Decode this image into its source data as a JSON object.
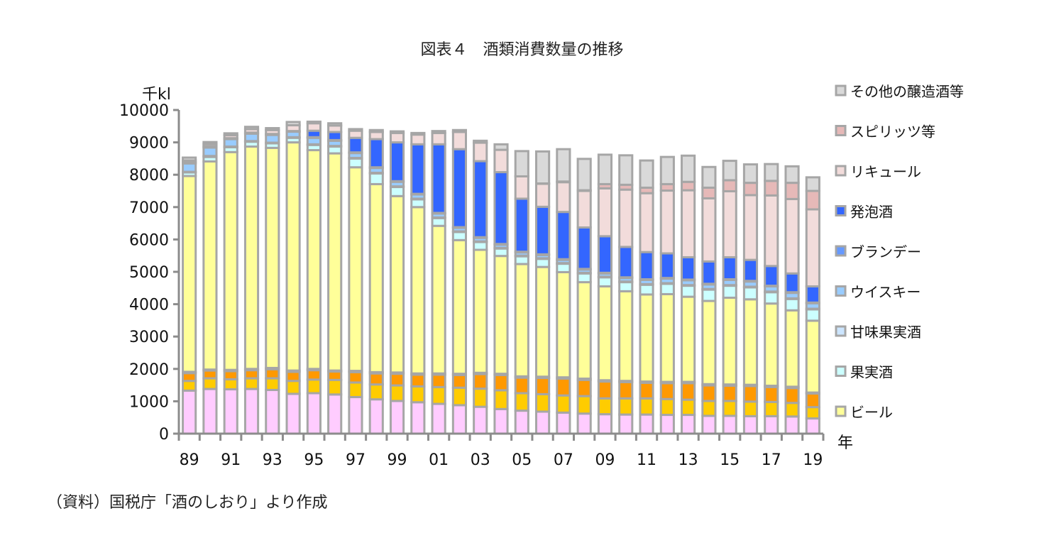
{
  "chart_data": {
    "type": "bar",
    "stacked": true,
    "title": "図表４　酒類消費数量の推移",
    "ylabel": "千kl",
    "xlabel": "年",
    "source": "（資料）国税庁「酒のしおり」より作成",
    "ylim": [
      0,
      10000
    ],
    "yticks": [
      0,
      1000,
      2000,
      3000,
      4000,
      5000,
      6000,
      7000,
      8000,
      9000,
      10000
    ],
    "categories": [
      "89",
      "90",
      "91",
      "92",
      "93",
      "94",
      "95",
      "96",
      "97",
      "98",
      "99",
      "00",
      "01",
      "02",
      "03",
      "04",
      "05",
      "06",
      "07",
      "08",
      "09",
      "10",
      "11",
      "12",
      "13",
      "14",
      "15",
      "16",
      "17",
      "18",
      "19"
    ],
    "xtick_labels": [
      "89",
      "91",
      "93",
      "95",
      "97",
      "99",
      "01",
      "03",
      "05",
      "07",
      "09",
      "11",
      "13",
      "15",
      "17",
      "19"
    ],
    "series": [
      {
        "name": "",
        "color": "#ffccff",
        "values": [
          1330,
          1380,
          1370,
          1380,
          1350,
          1230,
          1250,
          1210,
          1130,
          1060,
          1010,
          970,
          920,
          880,
          830,
          760,
          710,
          680,
          650,
          620,
          600,
          590,
          590,
          580,
          580,
          550,
          550,
          540,
          540,
          530,
          470
        ]
      },
      {
        "name": "",
        "color": "#ffcc00",
        "values": [
          300,
          330,
          310,
          330,
          360,
          400,
          420,
          450,
          450,
          460,
          480,
          490,
          520,
          540,
          560,
          580,
          540,
          540,
          530,
          540,
          490,
          500,
          500,
          490,
          470,
          460,
          460,
          450,
          440,
          420,
          350
        ]
      },
      {
        "name": "",
        "color": "#ff9900",
        "values": [
          240,
          240,
          250,
          250,
          280,
          280,
          290,
          260,
          320,
          340,
          360,
          360,
          380,
          390,
          450,
          470,
          480,
          500,
          520,
          500,
          520,
          500,
          480,
          490,
          510,
          480,
          470,
          480,
          460,
          460,
          420
        ]
      },
      {
        "name": "",
        "color": "#800000",
        "values": [
          40,
          30,
          40,
          40,
          40,
          40,
          40,
          30,
          40,
          40,
          40,
          40,
          40,
          40,
          40,
          40,
          40,
          40,
          40,
          40,
          40,
          40,
          40,
          40,
          40,
          40,
          40,
          40,
          40,
          40,
          30
        ]
      },
      {
        "name": "ビール",
        "color": "#ffff99",
        "values": [
          6050,
          6430,
          6730,
          6870,
          6800,
          7050,
          6760,
          6710,
          6290,
          5810,
          5450,
          5140,
          4560,
          4130,
          3800,
          3640,
          3470,
          3390,
          3250,
          2980,
          2900,
          2770,
          2690,
          2710,
          2630,
          2570,
          2680,
          2640,
          2540,
          2360,
          2220
        ]
      },
      {
        "name": "果実酒",
        "color": "#ccffff",
        "values": [
          110,
          140,
          150,
          150,
          140,
          140,
          160,
          210,
          270,
          330,
          280,
          240,
          240,
          250,
          240,
          230,
          240,
          250,
          260,
          270,
          280,
          280,
          300,
          320,
          340,
          350,
          370,
          370,
          350,
          350,
          350
        ]
      },
      {
        "name": "甘味果実酒",
        "color": "#cce5ff",
        "values": [
          20,
          30,
          20,
          20,
          20,
          20,
          20,
          20,
          20,
          20,
          20,
          20,
          20,
          20,
          20,
          20,
          20,
          20,
          20,
          20,
          20,
          20,
          20,
          20,
          20,
          20,
          20,
          20,
          20,
          20,
          20
        ]
      },
      {
        "name": "ウイスキー",
        "color": "#99ccff",
        "values": [
          260,
          260,
          230,
          230,
          240,
          170,
          200,
          160,
          150,
          150,
          140,
          130,
          120,
          110,
          110,
          100,
          100,
          100,
          100,
          100,
          100,
          110,
          130,
          140,
          150,
          140,
          160,
          160,
          160,
          170,
          170
        ]
      },
      {
        "name": "ブランデー",
        "color": "#6699ff",
        "values": [
          40,
          40,
          30,
          30,
          30,
          20,
          20,
          20,
          20,
          20,
          20,
          20,
          20,
          20,
          20,
          20,
          20,
          20,
          20,
          20,
          20,
          20,
          20,
          20,
          20,
          20,
          20,
          20,
          20,
          20,
          20
        ]
      },
      {
        "name": "発泡酒",
        "color": "#3366ff",
        "values": [
          0,
          0,
          0,
          0,
          0,
          0,
          200,
          250,
          450,
          870,
          1200,
          1530,
          2120,
          2410,
          2350,
          2220,
          1640,
          1470,
          1460,
          1280,
          1130,
          940,
          840,
          760,
          690,
          690,
          680,
          650,
          610,
          580,
          500
        ]
      },
      {
        "name": "リキュール",
        "color": "#f2dcdb",
        "values": [
          50,
          70,
          90,
          110,
          120,
          180,
          230,
          200,
          220,
          220,
          290,
          300,
          350,
          530,
          570,
          690,
          690,
          710,
          920,
          1130,
          1480,
          1770,
          1820,
          1940,
          2070,
          1950,
          2040,
          2000,
          2180,
          2300,
          2380
        ]
      },
      {
        "name": "スピリッツ等",
        "color": "#e6b9b8",
        "values": [
          0,
          0,
          0,
          0,
          0,
          0,
          0,
          0,
          0,
          0,
          0,
          0,
          0,
          0,
          0,
          0,
          0,
          10,
          20,
          20,
          130,
          150,
          170,
          200,
          260,
          330,
          340,
          380,
          450,
          500,
          570
        ]
      },
      {
        "name": "その他の醸造酒等",
        "color": "#d9d9d9",
        "values": [
          90,
          60,
          60,
          70,
          60,
          100,
          50,
          70,
          50,
          60,
          50,
          50,
          60,
          60,
          60,
          170,
          780,
          990,
          1000,
          970,
          910,
          910,
          840,
          840,
          810,
          640,
          600,
          570,
          520,
          510,
          420
        ]
      }
    ],
    "legend": {
      "placement": "right",
      "items": [
        "その他の醸造酒等",
        "スピリッツ等",
        "リキュール",
        "発泡酒",
        "ブランデー",
        "ウイスキー",
        "甘味果実酒",
        "果実酒",
        "ビール"
      ]
    }
  }
}
